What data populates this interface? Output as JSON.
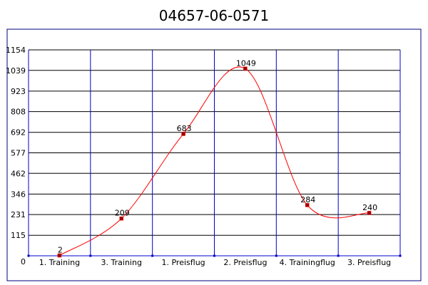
{
  "chart_data": {
    "type": "line",
    "title": "04657-06-0571",
    "xlabel": "",
    "ylabel": "",
    "categories": [
      "1. Training",
      "3. Training",
      "1. Preisflug",
      "2. Preisflug",
      "4. Trainingflug",
      "3. Preisflug"
    ],
    "series": [
      {
        "values": [
          2,
          209,
          683,
          1049,
          284,
          240
        ],
        "data_labels": [
          "2",
          "209",
          "683",
          "1049",
          "284",
          "240"
        ]
      }
    ],
    "ylim": [
      0,
      1154
    ],
    "yticks": [
      "0",
      "115",
      "231",
      "346",
      "462",
      "577",
      "692",
      "808",
      "923",
      "1039",
      "1154"
    ],
    "grid": true,
    "legend": "none",
    "colors": {
      "line": "#ff0000",
      "marker": "#990000",
      "grid": "#0000cc",
      "frame": "#000080"
    }
  }
}
